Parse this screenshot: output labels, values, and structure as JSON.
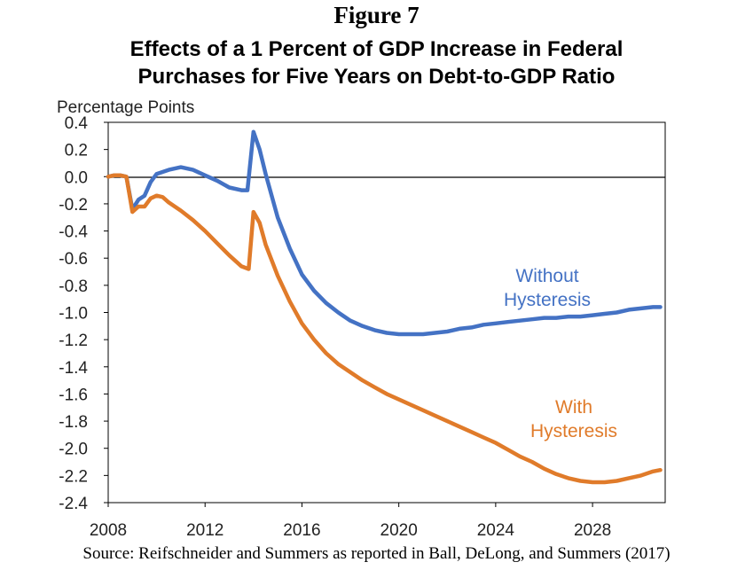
{
  "figure_label": "Figure 7",
  "chart_data": {
    "type": "line",
    "title_line1": "Effects of a 1 Percent of GDP Increase in Federal",
    "title_line2": "Purchases for Five Years on Debt-to-GDP Ratio",
    "ylabel": "Percentage Points",
    "xlabel": "",
    "xlim": [
      2008,
      2031
    ],
    "ylim": [
      -2.4,
      0.4
    ],
    "xticks": [
      2008,
      2012,
      2016,
      2020,
      2024,
      2028
    ],
    "yticks": [
      0.4,
      0.2,
      0.0,
      -0.2,
      -0.4,
      -0.6,
      -0.8,
      -1.0,
      -1.2,
      -1.4,
      -1.6,
      -1.8,
      -2.0,
      -2.2,
      -2.4
    ],
    "ytick_labels": [
      "0.4",
      "0.2",
      "0.0",
      "-0.2",
      "-0.4",
      "-0.6",
      "-0.8",
      "-1.0",
      "-1.2",
      "-1.4",
      "-1.6",
      "-1.8",
      "-2.0",
      "-2.2",
      "-2.4"
    ],
    "zero_line": true,
    "grid": false,
    "series": [
      {
        "name": "Without Hysteresis",
        "label_lines": [
          "Without",
          "Hysteresis"
        ],
        "color": "#4472c4",
        "points": [
          [
            2008.0,
            0.0
          ],
          [
            2008.25,
            0.01
          ],
          [
            2008.5,
            0.01
          ],
          [
            2008.75,
            0.0
          ],
          [
            2009.0,
            -0.24
          ],
          [
            2009.25,
            -0.17
          ],
          [
            2009.5,
            -0.14
          ],
          [
            2009.75,
            -0.04
          ],
          [
            2010.0,
            0.02
          ],
          [
            2010.5,
            0.05
          ],
          [
            2011.0,
            0.07
          ],
          [
            2011.5,
            0.05
          ],
          [
            2012.0,
            0.01
          ],
          [
            2012.5,
            -0.03
          ],
          [
            2013.0,
            -0.08
          ],
          [
            2013.5,
            -0.1
          ],
          [
            2013.75,
            -0.1
          ],
          [
            2014.0,
            0.33
          ],
          [
            2014.25,
            0.2
          ],
          [
            2014.5,
            0.02
          ],
          [
            2015.0,
            -0.3
          ],
          [
            2015.5,
            -0.53
          ],
          [
            2016.0,
            -0.72
          ],
          [
            2016.5,
            -0.84
          ],
          [
            2017.0,
            -0.93
          ],
          [
            2017.5,
            -1.0
          ],
          [
            2018.0,
            -1.06
          ],
          [
            2018.5,
            -1.1
          ],
          [
            2019.0,
            -1.13
          ],
          [
            2019.5,
            -1.15
          ],
          [
            2020.0,
            -1.16
          ],
          [
            2020.5,
            -1.16
          ],
          [
            2021.0,
            -1.16
          ],
          [
            2021.5,
            -1.15
          ],
          [
            2022.0,
            -1.14
          ],
          [
            2022.5,
            -1.12
          ],
          [
            2023.0,
            -1.11
          ],
          [
            2023.5,
            -1.09
          ],
          [
            2024.0,
            -1.08
          ],
          [
            2024.5,
            -1.07
          ],
          [
            2025.0,
            -1.06
          ],
          [
            2025.5,
            -1.05
          ],
          [
            2026.0,
            -1.04
          ],
          [
            2026.5,
            -1.04
          ],
          [
            2027.0,
            -1.03
          ],
          [
            2027.5,
            -1.03
          ],
          [
            2028.0,
            -1.02
          ],
          [
            2028.5,
            -1.01
          ],
          [
            2029.0,
            -1.0
          ],
          [
            2029.5,
            -0.98
          ],
          [
            2030.0,
            -0.97
          ],
          [
            2030.5,
            -0.96
          ],
          [
            2030.8,
            -0.96
          ]
        ]
      },
      {
        "name": "With Hysteresis",
        "label_lines": [
          "With",
          "Hysteresis"
        ],
        "color": "#e07b2a",
        "points": [
          [
            2008.0,
            0.0
          ],
          [
            2008.25,
            0.01
          ],
          [
            2008.5,
            0.01
          ],
          [
            2008.75,
            0.0
          ],
          [
            2009.0,
            -0.26
          ],
          [
            2009.25,
            -0.22
          ],
          [
            2009.5,
            -0.22
          ],
          [
            2009.75,
            -0.16
          ],
          [
            2010.0,
            -0.14
          ],
          [
            2010.25,
            -0.15
          ],
          [
            2010.5,
            -0.19
          ],
          [
            2011.0,
            -0.25
          ],
          [
            2011.5,
            -0.32
          ],
          [
            2012.0,
            -0.4
          ],
          [
            2012.5,
            -0.49
          ],
          [
            2013.0,
            -0.58
          ],
          [
            2013.5,
            -0.66
          ],
          [
            2013.8,
            -0.68
          ],
          [
            2014.0,
            -0.26
          ],
          [
            2014.25,
            -0.34
          ],
          [
            2014.5,
            -0.5
          ],
          [
            2015.0,
            -0.73
          ],
          [
            2015.5,
            -0.92
          ],
          [
            2016.0,
            -1.08
          ],
          [
            2016.5,
            -1.2
          ],
          [
            2017.0,
            -1.3
          ],
          [
            2017.5,
            -1.38
          ],
          [
            2018.0,
            -1.44
          ],
          [
            2018.5,
            -1.5
          ],
          [
            2019.0,
            -1.55
          ],
          [
            2019.5,
            -1.6
          ],
          [
            2020.0,
            -1.64
          ],
          [
            2020.5,
            -1.68
          ],
          [
            2021.0,
            -1.72
          ],
          [
            2021.5,
            -1.76
          ],
          [
            2022.0,
            -1.8
          ],
          [
            2022.5,
            -1.84
          ],
          [
            2023.0,
            -1.88
          ],
          [
            2023.5,
            -1.92
          ],
          [
            2024.0,
            -1.96
          ],
          [
            2024.5,
            -2.01
          ],
          [
            2025.0,
            -2.06
          ],
          [
            2025.5,
            -2.1
          ],
          [
            2026.0,
            -2.15
          ],
          [
            2026.5,
            -2.19
          ],
          [
            2027.0,
            -2.22
          ],
          [
            2027.5,
            -2.24
          ],
          [
            2028.0,
            -2.25
          ],
          [
            2028.5,
            -2.25
          ],
          [
            2029.0,
            -2.24
          ],
          [
            2029.5,
            -2.22
          ],
          [
            2030.0,
            -2.2
          ],
          [
            2030.5,
            -2.17
          ],
          [
            2030.8,
            -2.16
          ]
        ]
      }
    ]
  },
  "source": "Source: Reifschneider and Summers as reported in Ball, DeLong, and Summers (2017)"
}
